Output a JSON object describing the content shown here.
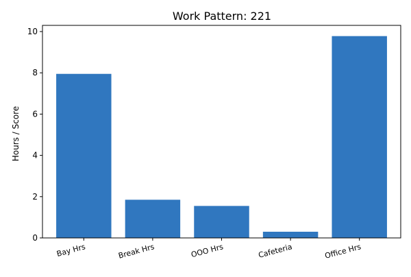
{
  "chart_data": {
    "type": "bar",
    "title": "Work Pattern: 221",
    "xlabel": "",
    "ylabel": "Hours / Score",
    "categories": [
      "Bay Hrs",
      "Break Hrs",
      "OOO Hrs",
      "Cafeteria",
      "Office Hrs"
    ],
    "values": [
      7.95,
      1.85,
      1.55,
      0.3,
      9.78
    ],
    "ylim": [
      0,
      10.3
    ],
    "yticks": [
      0,
      2,
      4,
      6,
      8,
      10
    ],
    "grid": false,
    "bar_color": "#3077bf",
    "axis_color": "#000000"
  }
}
